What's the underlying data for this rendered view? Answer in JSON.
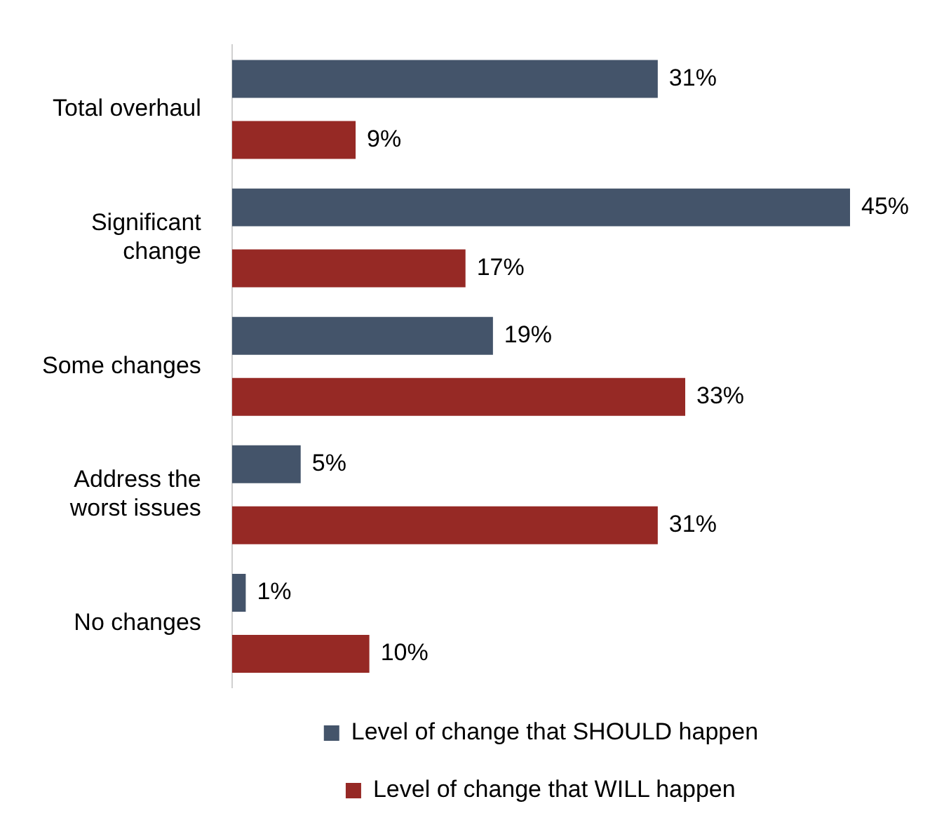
{
  "chart_data": {
    "type": "bar",
    "orientation": "horizontal",
    "categories": [
      "Total overhaul",
      "Significant change",
      "Some changes",
      "Address the worst issues",
      "No changes"
    ],
    "series": [
      {
        "name": "Level of change that SHOULD happen",
        "color": "#44546a",
        "values": [
          31,
          45,
          19,
          5,
          1
        ],
        "value_labels": [
          "31%",
          "45%",
          "19%",
          "5%",
          "1%"
        ]
      },
      {
        "name": "Level of change that WILL happen",
        "color": "#962925",
        "values": [
          9,
          17,
          33,
          31,
          10
        ],
        "value_labels": [
          "9%",
          "17%",
          "33%",
          "31%",
          "10%"
        ]
      }
    ],
    "xlim": [
      0,
      45
    ],
    "tick_labels": "y",
    "grid": false,
    "legend": "bottom"
  }
}
